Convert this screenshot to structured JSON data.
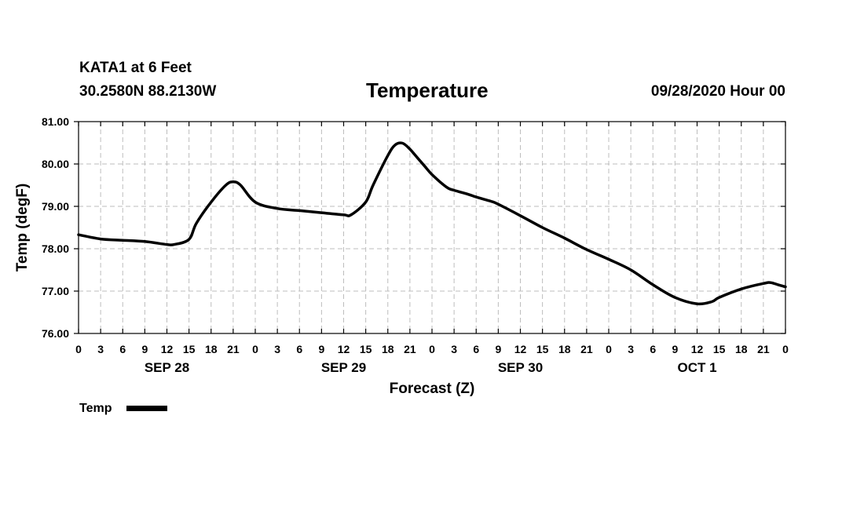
{
  "header": {
    "station": "KATA1 at 6 Feet",
    "coords": "30.2580N 88.2130W",
    "title": "Temperature",
    "datetime": "09/28/2020 Hour 00"
  },
  "chart_data": {
    "type": "line",
    "title": "Temperature",
    "xlabel": "Forecast (Z)",
    "ylabel": "Temp (degF)",
    "ylim": [
      76,
      81
    ],
    "xlim_hours": [
      0,
      96
    ],
    "grid": true,
    "legend": "bottom-left",
    "x_tick_hours": [
      0,
      3,
      6,
      9,
      12,
      15,
      18,
      21,
      24,
      27,
      30,
      33,
      36,
      39,
      42,
      45,
      48,
      51,
      54,
      57,
      60,
      63,
      66,
      69,
      72,
      75,
      78,
      81,
      84,
      87,
      90,
      93,
      96
    ],
    "x_tick_labels": [
      "0",
      "3",
      "6",
      "9",
      "12",
      "15",
      "18",
      "21",
      "0",
      "3",
      "6",
      "9",
      "12",
      "15",
      "18",
      "21",
      "0",
      "3",
      "6",
      "9",
      "12",
      "15",
      "18",
      "21",
      "0",
      "3",
      "6",
      "9",
      "12",
      "15",
      "18",
      "21",
      "0"
    ],
    "y_ticks": [
      76,
      77,
      78,
      79,
      80,
      81
    ],
    "y_tick_labels": [
      "76.00",
      "77.00",
      "78.00",
      "79.00",
      "80.00",
      "81.00"
    ],
    "day_labels": [
      {
        "label": "SEP 28",
        "hour": 12
      },
      {
        "label": "SEP 29",
        "hour": 36
      },
      {
        "label": "SEP 30",
        "hour": 60
      },
      {
        "label": "OCT 1",
        "hour": 84
      }
    ],
    "series": [
      {
        "name": "Temp",
        "color": "#000000",
        "x": [
          0,
          3,
          6,
          9,
          12,
          13,
          15,
          16,
          18,
          20,
          21,
          22,
          24,
          27,
          30,
          33,
          36,
          37,
          39,
          40,
          42,
          43,
          44,
          45,
          46,
          47,
          48,
          50,
          51,
          53,
          54,
          56,
          57,
          60,
          63,
          66,
          69,
          72,
          75,
          78,
          81,
          84,
          86,
          87,
          90,
          93,
          94,
          95,
          96
        ],
        "y": [
          78.33,
          78.23,
          78.2,
          78.17,
          78.1,
          78.1,
          78.22,
          78.6,
          79.1,
          79.5,
          79.58,
          79.5,
          79.1,
          78.95,
          78.9,
          78.85,
          78.8,
          78.8,
          79.1,
          79.5,
          80.2,
          80.45,
          80.49,
          80.35,
          80.15,
          79.95,
          79.75,
          79.45,
          79.38,
          79.28,
          79.22,
          79.12,
          79.05,
          78.78,
          78.5,
          78.25,
          77.98,
          77.75,
          77.5,
          77.15,
          76.85,
          76.7,
          76.75,
          76.85,
          77.05,
          77.18,
          77.2,
          77.15,
          77.1
        ]
      }
    ]
  },
  "legend": {
    "label": "Temp"
  }
}
